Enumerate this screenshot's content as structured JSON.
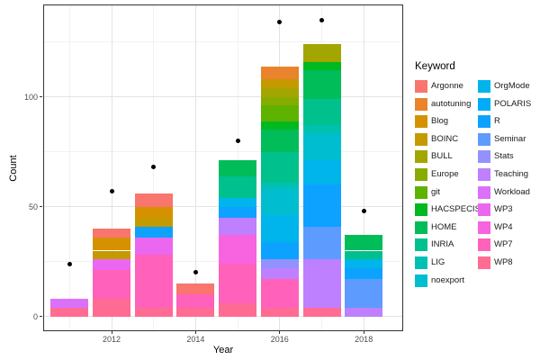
{
  "chart_data": {
    "type": "bar",
    "stacked": true,
    "title": "",
    "xlabel": "Year",
    "ylabel": "Count",
    "legend_title": "Keyword",
    "x_major_ticks": [
      2012,
      2014,
      2016,
      2018
    ],
    "x_minor_ticks": [
      2011,
      2013,
      2015,
      2017
    ],
    "y_major_ticks": [
      0,
      50,
      100
    ],
    "y_minor_ticks": [
      25,
      75,
      125
    ],
    "ylim": [
      0,
      142
    ],
    "grid": true,
    "legend_position": "right",
    "keywords": [
      "Argonne",
      "autotuning",
      "Blog",
      "BOINC",
      "BULL",
      "Europe",
      "git",
      "HACSPECIS",
      "HOME",
      "INRIA",
      "LIG",
      "noexport",
      "OrgMode",
      "POLARIS",
      "R",
      "Seminar",
      "Stats",
      "Teaching",
      "Workload",
      "WP3",
      "WP4",
      "WP7",
      "WP8"
    ],
    "palette": {
      "Argonne": "#F8766D",
      "autotuning": "#E9842C",
      "Blog": "#D69100",
      "BOINC": "#C49A00",
      "BULL": "#A3A500",
      "Europe": "#86AC00",
      "git": "#5EB300",
      "HACSPECIS": "#00B81F",
      "HOME": "#00BC59",
      "INRIA": "#00C08D",
      "LIG": "#00C0B4",
      "noexport": "#00BDD0",
      "OrgMode": "#00B5EB",
      "POLARIS": "#00ABF7",
      "R": "#0DA2FF",
      "Seminar": "#5E9BFF",
      "Stats": "#9491FF",
      "Teaching": "#BE80FF",
      "Workload": "#DB70FB",
      "WP3": "#EC67F0",
      "WP4": "#F863DF",
      "WP7": "#FF61BB",
      "WP8": "#FF6B93"
    },
    "bars": [
      {
        "year": 2011,
        "total": 8,
        "segments": [
          {
            "keyword": "WP8",
            "value": 4
          },
          {
            "keyword": "Workload",
            "value": 4
          }
        ]
      },
      {
        "year": 2012,
        "total": 40,
        "segments": [
          {
            "keyword": "WP8",
            "value": 8
          },
          {
            "keyword": "WP7",
            "value": 13
          },
          {
            "keyword": "WP3",
            "value": 5
          },
          {
            "keyword": "BOINC",
            "value": 4
          },
          {
            "keyword": "Blog",
            "value": 6
          },
          {
            "keyword": "Argonne",
            "value": 4
          }
        ]
      },
      {
        "year": 2013,
        "total": 56,
        "segments": [
          {
            "keyword": "WP8",
            "value": 4
          },
          {
            "keyword": "WP7",
            "value": 24
          },
          {
            "keyword": "WP3",
            "value": 8
          },
          {
            "keyword": "R",
            "value": 5
          },
          {
            "keyword": "BOINC",
            "value": 4
          },
          {
            "keyword": "Blog",
            "value": 5
          },
          {
            "keyword": "Argonne",
            "value": 6
          }
        ]
      },
      {
        "year": 2014,
        "total": 15,
        "segments": [
          {
            "keyword": "WP8",
            "value": 4
          },
          {
            "keyword": "WP7",
            "value": 6
          },
          {
            "keyword": "Argonne",
            "value": 5
          }
        ]
      },
      {
        "year": 2015,
        "total": 71,
        "segments": [
          {
            "keyword": "WP8",
            "value": 6
          },
          {
            "keyword": "WP7",
            "value": 18
          },
          {
            "keyword": "WP4",
            "value": 13
          },
          {
            "keyword": "Teaching",
            "value": 8
          },
          {
            "keyword": "R",
            "value": 5
          },
          {
            "keyword": "OrgMode",
            "value": 4
          },
          {
            "keyword": "INRIA",
            "value": 10
          },
          {
            "keyword": "HOME",
            "value": 7
          }
        ]
      },
      {
        "year": 2016,
        "total": 114,
        "segments": [
          {
            "keyword": "WP8",
            "value": 4
          },
          {
            "keyword": "WP7",
            "value": 13
          },
          {
            "keyword": "Teaching",
            "value": 5
          },
          {
            "keyword": "Stats",
            "value": 4
          },
          {
            "keyword": "R",
            "value": 8
          },
          {
            "keyword": "OrgMode",
            "value": 12
          },
          {
            "keyword": "noexport",
            "value": 12
          },
          {
            "keyword": "LIG",
            "value": 3
          },
          {
            "keyword": "INRIA",
            "value": 14
          },
          {
            "keyword": "HOME",
            "value": 10
          },
          {
            "keyword": "HACSPECIS",
            "value": 4
          },
          {
            "keyword": "git",
            "value": 7
          },
          {
            "keyword": "Europe",
            "value": 4
          },
          {
            "keyword": "BULL",
            "value": 4
          },
          {
            "keyword": "BOINC",
            "value": 4
          },
          {
            "keyword": "autotuning",
            "value": 6
          }
        ]
      },
      {
        "year": 2017,
        "total": 124,
        "segments": [
          {
            "keyword": "WP8",
            "value": 4
          },
          {
            "keyword": "Teaching",
            "value": 22
          },
          {
            "keyword": "Seminar",
            "value": 15
          },
          {
            "keyword": "R",
            "value": 19
          },
          {
            "keyword": "OrgMode",
            "value": 11
          },
          {
            "keyword": "noexport",
            "value": 12
          },
          {
            "keyword": "LIG",
            "value": 4
          },
          {
            "keyword": "INRIA",
            "value": 12
          },
          {
            "keyword": "HOME",
            "value": 13
          },
          {
            "keyword": "HACSPECIS",
            "value": 4
          },
          {
            "keyword": "BULL",
            "value": 8
          }
        ]
      },
      {
        "year": 2018,
        "total": 37,
        "segments": [
          {
            "keyword": "Teaching",
            "value": 4
          },
          {
            "keyword": "Seminar",
            "value": 13
          },
          {
            "keyword": "R",
            "value": 5
          },
          {
            "keyword": "OrgMode",
            "value": 4
          },
          {
            "keyword": "INRIA",
            "value": 4
          },
          {
            "keyword": "HOME",
            "value": 7
          }
        ]
      }
    ],
    "points": [
      {
        "year": 2011,
        "value": 24
      },
      {
        "year": 2012,
        "value": 57
      },
      {
        "year": 2013,
        "value": 68
      },
      {
        "year": 2014,
        "value": 20
      },
      {
        "year": 2015,
        "value": 80
      },
      {
        "year": 2016,
        "value": 134
      },
      {
        "year": 2017,
        "value": 135
      },
      {
        "year": 2018,
        "value": 48
      }
    ]
  },
  "axes": {
    "x_title": "Year",
    "y_title": "Count"
  },
  "legend": {
    "title": "Keyword",
    "column1": [
      "Argonne",
      "autotuning",
      "Blog",
      "BOINC",
      "BULL",
      "Europe",
      "git",
      "HACSPECIS",
      "HOME",
      "INRIA",
      "LIG",
      "noexport"
    ],
    "column2": [
      "OrgMode",
      "POLARIS",
      "R",
      "Seminar",
      "Stats",
      "Teaching",
      "Workload",
      "WP3",
      "WP4",
      "WP7",
      "WP8"
    ]
  }
}
